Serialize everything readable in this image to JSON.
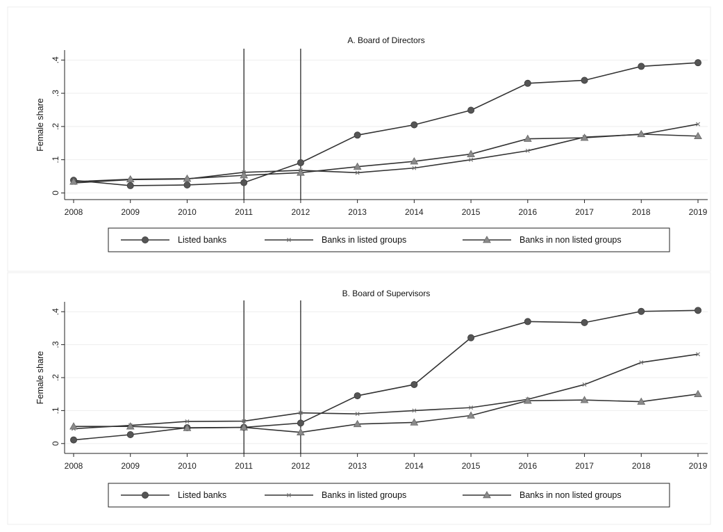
{
  "colors": {
    "line": "#333333",
    "marker": "#555555",
    "refline": "#000000",
    "background": "#ffffff",
    "frame": "#ececec"
  },
  "chart_data": [
    {
      "type": "line",
      "title": "A. Board of Directors",
      "ylabel": "Female share",
      "xlabel": "",
      "x": [
        2008,
        2009,
        2010,
        2011,
        2012,
        2013,
        2014,
        2015,
        2016,
        2017,
        2018,
        2019
      ],
      "ylim": [
        -0.02,
        0.43
      ],
      "yticks": [
        0,
        0.1,
        0.2,
        0.3,
        0.4
      ],
      "ytick_labels": [
        "0",
        ".1",
        ".2",
        ".3",
        ".4"
      ],
      "reference_lines_x": [
        2011,
        2012
      ],
      "grid": true,
      "legend_position": "bottom",
      "series": [
        {
          "name": "Listed banks",
          "marker": "circle",
          "values": [
            0.038,
            0.022,
            0.024,
            0.031,
            0.091,
            0.174,
            0.205,
            0.249,
            0.33,
            0.339,
            0.381,
            0.392
          ]
        },
        {
          "name": "Banks in listed groups",
          "marker": "x",
          "values": [
            0.03,
            0.04,
            0.042,
            0.062,
            0.068,
            0.061,
            0.075,
            0.1,
            0.127,
            0.168,
            0.176,
            0.207
          ]
        },
        {
          "name": "Banks in non listed groups",
          "marker": "triangle",
          "values": [
            0.034,
            0.041,
            0.043,
            0.053,
            0.061,
            0.079,
            0.095,
            0.117,
            0.163,
            0.166,
            0.177,
            0.171
          ]
        }
      ]
    },
    {
      "type": "line",
      "title": "B. Board of Supervisors",
      "ylabel": "Female share",
      "xlabel": "",
      "x": [
        2008,
        2009,
        2010,
        2011,
        2012,
        2013,
        2014,
        2015,
        2016,
        2017,
        2018,
        2019
      ],
      "ylim": [
        -0.03,
        0.43
      ],
      "yticks": [
        0,
        0.1,
        0.2,
        0.3,
        0.4
      ],
      "ytick_labels": [
        "0",
        ".1",
        ".2",
        ".3",
        ".4"
      ],
      "reference_lines_x": [
        2011,
        2012
      ],
      "grid": true,
      "legend_position": "bottom",
      "series": [
        {
          "name": "Listed banks",
          "marker": "circle",
          "values": [
            0.011,
            0.027,
            0.048,
            0.049,
            0.062,
            0.145,
            0.179,
            0.321,
            0.37,
            0.367,
            0.401,
            0.404
          ]
        },
        {
          "name": "Banks in listed groups",
          "marker": "x",
          "values": [
            0.045,
            0.055,
            0.067,
            0.068,
            0.093,
            0.09,
            0.1,
            0.109,
            0.134,
            0.179,
            0.246,
            0.271
          ]
        },
        {
          "name": "Banks in non listed groups",
          "marker": "triangle",
          "values": [
            0.052,
            0.052,
            0.047,
            0.049,
            0.034,
            0.059,
            0.064,
            0.085,
            0.13,
            0.132,
            0.127,
            0.15
          ]
        }
      ]
    }
  ]
}
